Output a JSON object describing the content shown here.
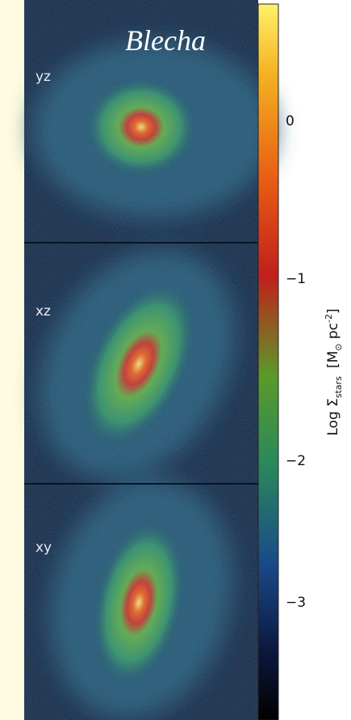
{
  "figure": {
    "title": "Blecha",
    "panels": [
      {
        "label": "yz"
      },
      {
        "label": "xz"
      },
      {
        "label": "xy"
      }
    ],
    "colorbar": {
      "ticks": [
        "0",
        "−1",
        "−2",
        "−3"
      ],
      "label": {
        "prefix": "Log Σ",
        "subscript": "stars",
        "unit_open": "[M",
        "sun": "⊙",
        "unit": " pc",
        "exponent": "-2",
        "unit_close": "]"
      }
    }
  }
}
